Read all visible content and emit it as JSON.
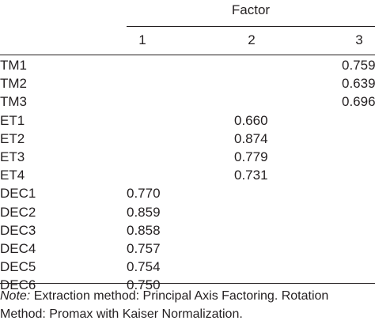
{
  "table": {
    "group_header": "Factor",
    "columns": [
      "1",
      "2",
      "3"
    ],
    "rows": [
      {
        "label": "TM1",
        "values": [
          "",
          "",
          "0.759"
        ]
      },
      {
        "label": "TM2",
        "values": [
          "",
          "",
          "0.639"
        ]
      },
      {
        "label": "TM3",
        "values": [
          "",
          "",
          "0.696"
        ]
      },
      {
        "label": "ET1",
        "values": [
          "",
          "0.660",
          ""
        ]
      },
      {
        "label": "ET2",
        "values": [
          "",
          "0.874",
          ""
        ]
      },
      {
        "label": "ET3",
        "values": [
          "",
          "0.779",
          ""
        ]
      },
      {
        "label": "ET4",
        "values": [
          "",
          "0.731",
          ""
        ]
      },
      {
        "label": "DEC1",
        "values": [
          "0.770",
          "",
          ""
        ]
      },
      {
        "label": "DEC2",
        "values": [
          "0.859",
          "",
          ""
        ]
      },
      {
        "label": "DEC3",
        "values": [
          "0.858",
          "",
          ""
        ]
      },
      {
        "label": "DEC4",
        "values": [
          "0.757",
          "",
          ""
        ]
      },
      {
        "label": "DEC5",
        "values": [
          "0.754",
          "",
          ""
        ]
      },
      {
        "label": "DEC6",
        "values": [
          "0.750",
          "",
          ""
        ]
      }
    ]
  },
  "note": {
    "label": "Note:",
    "text": " Extraction method: Principal Axis Factoring. Rotation Method: Promax with Kaiser Normalization."
  }
}
